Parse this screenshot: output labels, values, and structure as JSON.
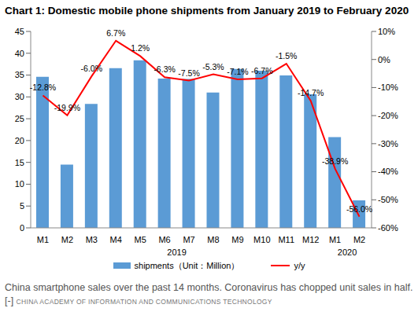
{
  "chart_data": {
    "type": "bar",
    "title": "Chart 1: Domestic mobile phone shipments from January 2019 to February 2020",
    "caption": "China smartphone sales over the past 14 months. Coronavirus has chopped unit sales in half. [-]",
    "credit": "CHINA ACADEMY OF INFORMATION AND COMMUNICATIONS TECHNOLOGY",
    "categories": [
      "M1",
      "M2",
      "M3",
      "M4",
      "M5",
      "M6",
      "M7",
      "M8",
      "M9",
      "M10",
      "M11",
      "M12",
      "M1",
      "M2"
    ],
    "category_groups": [
      {
        "label": "2019",
        "from": 0,
        "to": 11
      },
      {
        "label": "2020",
        "from": 12,
        "to": 13
      }
    ],
    "series": [
      {
        "name": "shipments（Unit：Million）",
        "type": "bar",
        "color": "#5b9bd5",
        "values": [
          34.6,
          14.5,
          28.4,
          36.6,
          38.4,
          34.2,
          34.1,
          31.0,
          36.4,
          36.0,
          34.9,
          30.6,
          20.8,
          6.3
        ]
      },
      {
        "name": "y/y",
        "type": "line",
        "axis": "y2",
        "color": "#ff0000",
        "data_labels": true,
        "values": [
          -12.8,
          -19.9,
          -6.0,
          6.7,
          1.2,
          -6.3,
          -7.5,
          -5.3,
          -7.1,
          -6.7,
          -1.5,
          -14.7,
          -38.9,
          -56.0
        ],
        "value_labels": [
          "-12.8%",
          "-19.9%",
          "-6.0%",
          "6.7%",
          "1.2%",
          "-6.3%",
          "-7.5%",
          "-5.3%",
          "-7.1%",
          "-6.7%",
          "-1.5%",
          "-14.7%",
          "-38.9%",
          "-56.0%"
        ]
      }
    ],
    "ylim": [
      0,
      45
    ],
    "yticks": [
      0,
      5,
      10,
      15,
      20,
      25,
      30,
      35,
      40,
      45
    ],
    "y2lim": [
      -60,
      10
    ],
    "y2ticks": [
      {
        "value": 10,
        "label": "10%"
      },
      {
        "value": 0,
        "label": "0%"
      },
      {
        "value": -10,
        "label": "-10%"
      },
      {
        "value": -20,
        "label": "-20%"
      },
      {
        "value": -30,
        "label": "-30%"
      },
      {
        "value": -40,
        "label": "-40%"
      },
      {
        "value": -50,
        "label": "-50%"
      },
      {
        "value": -60,
        "label": "-60%"
      }
    ],
    "grid": false,
    "legend": "bottom"
  }
}
